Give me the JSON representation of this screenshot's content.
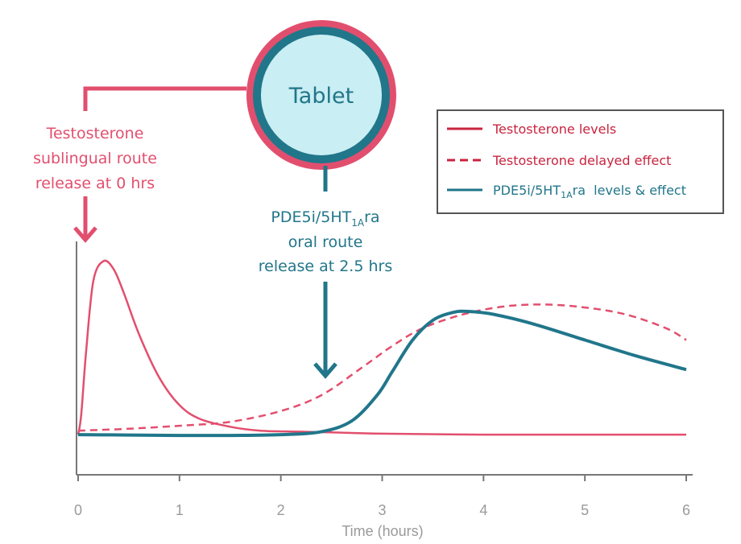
{
  "colors": {
    "testosterone": "#e24f6e",
    "testosterone_line": "#c8243f",
    "pde5i": "#21768a",
    "tablet_fill": "#c9eef3",
    "tablet_ring": "#e24f6e",
    "axis": "#777777"
  },
  "tablet": {
    "label": "Tablet"
  },
  "annotations": {
    "testosterone": [
      "Testosterone",
      "sublingual route",
      "release at 0 hrs"
    ],
    "pde5i_line1_main": "PDE5i/5HT",
    "pde5i_line1_sub": "1A",
    "pde5i_line1_tail": "ra",
    "pde5i_line2": "oral route",
    "pde5i_line3": "release at 2.5 hrs"
  },
  "legend": {
    "items": [
      {
        "label": "Testosterone levels",
        "style": "solid",
        "color": "#c8243f"
      },
      {
        "label": "Testosterone delayed effect",
        "style": "dashed",
        "color": "#c8243f"
      },
      {
        "label_main": "PDE5i/5HT",
        "label_sub": "1A",
        "label_tail": "ra  levels & effect",
        "style": "solid",
        "color": "#21768a"
      }
    ]
  },
  "chart_data": {
    "type": "line",
    "xlabel": "Time (hours)",
    "ylabel": "",
    "xlim": [
      0,
      6
    ],
    "xticks": [
      0,
      1,
      2,
      3,
      4,
      5,
      6
    ],
    "ylim": [
      0,
      1
    ],
    "series": [
      {
        "name": "Testosterone levels",
        "style": "solid",
        "x": [
          0,
          0.03,
          0.08,
          0.15,
          0.25,
          0.35,
          0.45,
          0.6,
          0.8,
          1.0,
          1.2,
          1.5,
          1.8,
          2.2,
          2.6,
          3.0,
          4.0,
          5.0,
          6.0
        ],
        "y": [
          0.02,
          0.12,
          0.45,
          0.8,
          0.9,
          0.86,
          0.74,
          0.53,
          0.31,
          0.17,
          0.1,
          0.06,
          0.04,
          0.035,
          0.03,
          0.025,
          0.02,
          0.02,
          0.02
        ]
      },
      {
        "name": "Testosterone delayed effect",
        "style": "dashed",
        "x": [
          0,
          0.5,
          1.0,
          1.5,
          2.0,
          2.4,
          2.8,
          3.1,
          3.4,
          3.8,
          4.2,
          4.6,
          5.0,
          5.4,
          5.8,
          6.0
        ],
        "y": [
          0.04,
          0.05,
          0.065,
          0.085,
          0.14,
          0.22,
          0.36,
          0.47,
          0.56,
          0.63,
          0.67,
          0.68,
          0.665,
          0.63,
          0.56,
          0.5
        ]
      },
      {
        "name": "PDE5i/5HT1Ara levels & effect",
        "style": "solid",
        "x": [
          0,
          0.5,
          1.0,
          1.5,
          2.0,
          2.4,
          2.7,
          2.95,
          3.1,
          3.3,
          3.5,
          3.7,
          3.85,
          4.1,
          4.5,
          5.0,
          5.5,
          6.0
        ],
        "y": [
          0.02,
          0.018,
          0.016,
          0.016,
          0.02,
          0.035,
          0.09,
          0.22,
          0.34,
          0.5,
          0.6,
          0.64,
          0.645,
          0.63,
          0.58,
          0.5,
          0.42,
          0.35
        ]
      }
    ]
  }
}
